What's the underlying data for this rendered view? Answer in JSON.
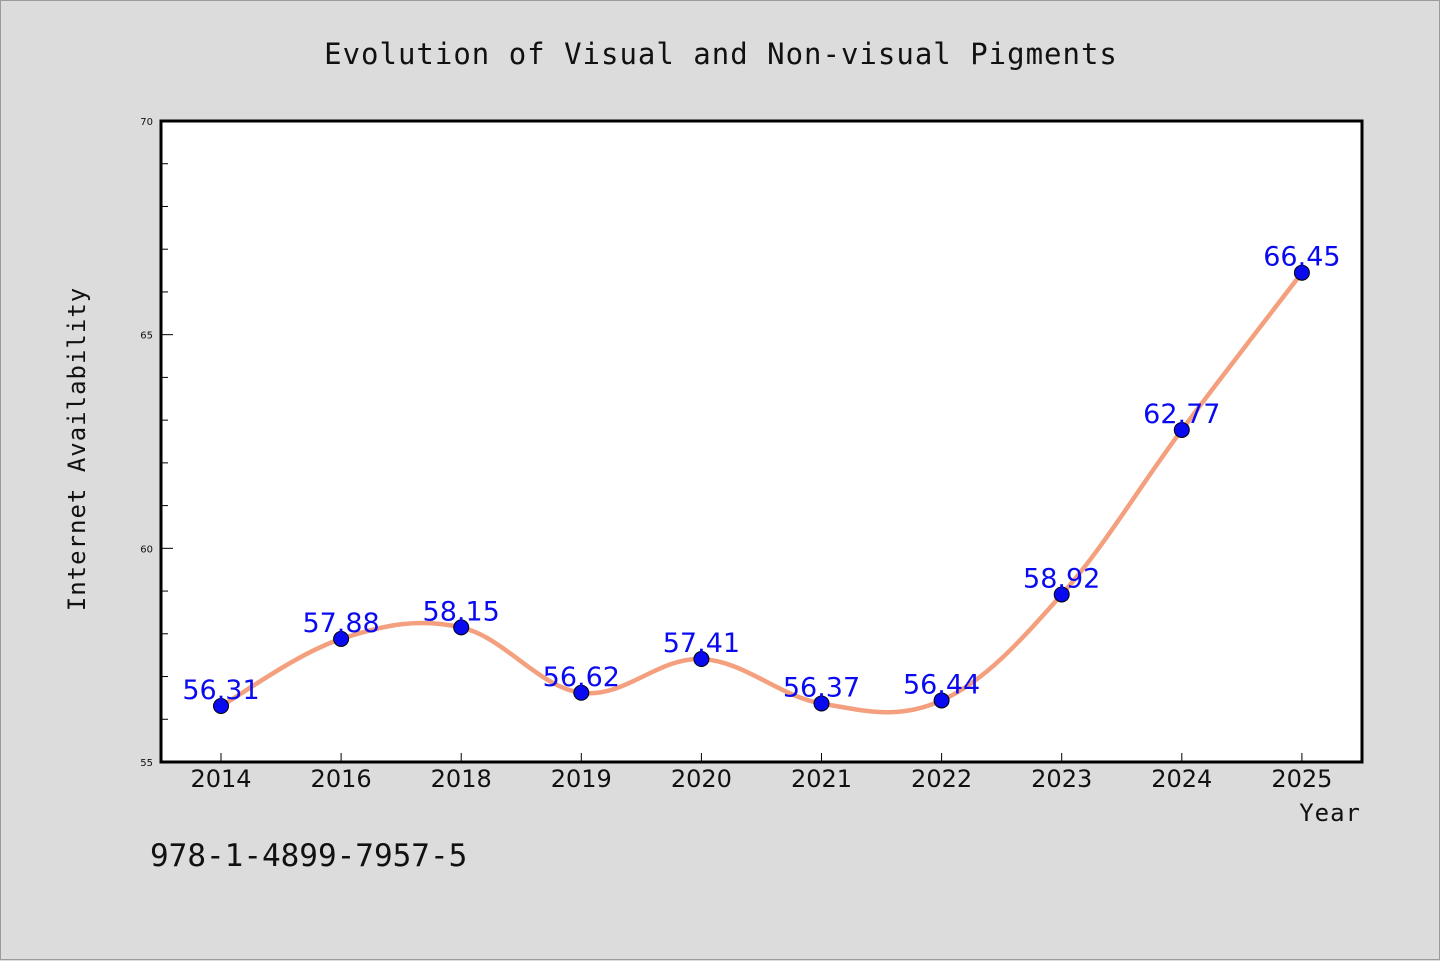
{
  "chart_data": {
    "type": "line",
    "title": "Evolution of Visual and Non-visual Pigments",
    "xlabel": "Year",
    "ylabel": "Internet Availability",
    "categories": [
      "2014",
      "2016",
      "2018",
      "2019",
      "2020",
      "2021",
      "2022",
      "2023",
      "2024",
      "2025"
    ],
    "series": [
      {
        "values": [
          56.31,
          57.88,
          58.15,
          56.62,
          57.41,
          56.37,
          56.44,
          58.92,
          62.77,
          66.45
        ],
        "data_labels": [
          "56.31",
          "57.88",
          "58.15",
          "56.62",
          "57.41",
          "56.37",
          "56.44",
          "58.92",
          "62.77",
          "66.45"
        ],
        "line_color": "#f4a07e",
        "marker_color": "#0a0af0"
      }
    ],
    "ylim": [
      55,
      70
    ],
    "y_major_ticks": [
      55,
      60,
      65,
      70
    ],
    "y_minor_tick_step": 1,
    "grid": false,
    "legend": "none",
    "plot_background": "#ffffff",
    "page_background": "#dcdcdc"
  },
  "footer": {
    "isbn": "978-1-4899-7957-5"
  }
}
